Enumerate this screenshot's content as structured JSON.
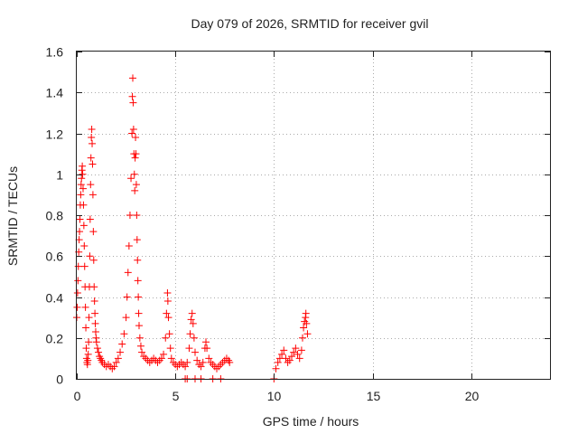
{
  "chart_data": {
    "type": "scatter",
    "title": "Day 079 of 2026, SRMTID for receiver gvil",
    "xlabel": "GPS time / hours",
    "ylabel": "SRMTID / TECUs",
    "xlim": [
      0,
      24
    ],
    "ylim": [
      0,
      1.6
    ],
    "x_ticks": [
      0,
      5,
      10,
      15,
      20
    ],
    "x_tick_labels": [
      "0",
      "5",
      "10",
      "15",
      "20"
    ],
    "y_ticks": [
      0,
      0.2,
      0.4,
      0.6,
      0.8,
      1.0,
      1.2,
      1.4,
      1.6
    ],
    "y_tick_labels": [
      "0",
      "0.2",
      "0.4",
      "0.6",
      "0.8",
      "1",
      "1.2",
      "1.4",
      "1.6"
    ],
    "grid": true,
    "marker": "plus",
    "color": "#ff0000",
    "series": [
      {
        "name": "gvil",
        "points": [
          [
            0.0,
            0.3
          ],
          [
            0.02,
            0.35
          ],
          [
            0.04,
            0.42
          ],
          [
            0.06,
            0.48
          ],
          [
            0.08,
            0.55
          ],
          [
            0.1,
            0.62
          ],
          [
            0.12,
            0.68
          ],
          [
            0.14,
            0.72
          ],
          [
            0.16,
            0.78
          ],
          [
            0.18,
            0.85
          ],
          [
            0.2,
            0.9
          ],
          [
            0.22,
            0.95
          ],
          [
            0.24,
            0.98
          ],
          [
            0.26,
            1.02
          ],
          [
            0.28,
            1.04
          ],
          [
            0.3,
            1.0
          ],
          [
            0.32,
            0.93
          ],
          [
            0.34,
            0.85
          ],
          [
            0.36,
            0.75
          ],
          [
            0.38,
            0.65
          ],
          [
            0.4,
            0.55
          ],
          [
            0.42,
            0.45
          ],
          [
            0.44,
            0.35
          ],
          [
            0.46,
            0.25
          ],
          [
            0.48,
            0.15
          ],
          [
            0.5,
            0.1
          ],
          [
            0.52,
            0.08
          ],
          [
            0.54,
            0.07
          ],
          [
            0.56,
            0.09
          ],
          [
            0.58,
            0.12
          ],
          [
            0.6,
            0.18
          ],
          [
            0.62,
            0.3
          ],
          [
            0.64,
            0.45
          ],
          [
            0.66,
            0.6
          ],
          [
            0.68,
            0.78
          ],
          [
            0.7,
            0.95
          ],
          [
            0.72,
            1.08
          ],
          [
            0.74,
            1.18
          ],
          [
            0.76,
            1.22
          ],
          [
            0.78,
            1.15
          ],
          [
            0.8,
            1.05
          ],
          [
            0.82,
            0.9
          ],
          [
            0.84,
            0.72
          ],
          [
            0.86,
            0.58
          ],
          [
            0.88,
            0.45
          ],
          [
            0.9,
            0.38
          ],
          [
            0.92,
            0.32
          ],
          [
            0.94,
            0.27
          ],
          [
            0.96,
            0.23
          ],
          [
            0.98,
            0.2
          ],
          [
            1.0,
            0.18
          ],
          [
            1.05,
            0.15
          ],
          [
            1.1,
            0.13
          ],
          [
            1.15,
            0.11
          ],
          [
            1.2,
            0.1
          ],
          [
            1.25,
            0.09
          ],
          [
            1.3,
            0.08
          ],
          [
            1.4,
            0.07
          ],
          [
            1.5,
            0.06
          ],
          [
            1.6,
            0.07
          ],
          [
            1.7,
            0.06
          ],
          [
            1.8,
            0.05
          ],
          [
            1.9,
            0.06
          ],
          [
            2.0,
            0.08
          ],
          [
            2.1,
            0.1
          ],
          [
            2.2,
            0.13
          ],
          [
            2.3,
            0.17
          ],
          [
            2.4,
            0.22
          ],
          [
            2.5,
            0.3
          ],
          [
            2.55,
            0.4
          ],
          [
            2.6,
            0.52
          ],
          [
            2.65,
            0.65
          ],
          [
            2.7,
            0.8
          ],
          [
            2.75,
            0.98
          ],
          [
            2.8,
            1.2
          ],
          [
            2.82,
            1.38
          ],
          [
            2.84,
            1.47
          ],
          [
            2.86,
            1.35
          ],
          [
            2.88,
            1.22
          ],
          [
            2.9,
            1.1
          ],
          [
            2.92,
            1.0
          ],
          [
            2.94,
            0.92
          ],
          [
            2.96,
            1.08
          ],
          [
            2.98,
            1.18
          ],
          [
            3.0,
            1.1
          ],
          [
            3.02,
            0.95
          ],
          [
            3.04,
            0.8
          ],
          [
            3.06,
            0.68
          ],
          [
            3.08,
            0.58
          ],
          [
            3.1,
            0.48
          ],
          [
            3.12,
            0.4
          ],
          [
            3.14,
            0.32
          ],
          [
            3.16,
            0.26
          ],
          [
            3.2,
            0.2
          ],
          [
            3.25,
            0.16
          ],
          [
            3.3,
            0.13
          ],
          [
            3.4,
            0.11
          ],
          [
            3.5,
            0.1
          ],
          [
            3.6,
            0.09
          ],
          [
            3.7,
            0.08
          ],
          [
            3.8,
            0.09
          ],
          [
            3.9,
            0.1
          ],
          [
            4.0,
            0.09
          ],
          [
            4.1,
            0.08
          ],
          [
            4.2,
            0.09
          ],
          [
            4.3,
            0.1
          ],
          [
            4.4,
            0.12
          ],
          [
            4.5,
            0.2
          ],
          [
            4.55,
            0.32
          ],
          [
            4.6,
            0.42
          ],
          [
            4.62,
            0.38
          ],
          [
            4.65,
            0.3
          ],
          [
            4.7,
            0.22
          ],
          [
            4.75,
            0.15
          ],
          [
            4.8,
            0.1
          ],
          [
            4.9,
            0.08
          ],
          [
            5.0,
            0.07
          ],
          [
            5.1,
            0.06
          ],
          [
            5.2,
            0.07
          ],
          [
            5.3,
            0.08
          ],
          [
            5.4,
            0.07
          ],
          [
            5.5,
            0.06
          ],
          [
            5.6,
            0.08
          ],
          [
            5.7,
            0.15
          ],
          [
            5.75,
            0.22
          ],
          [
            5.8,
            0.29
          ],
          [
            5.85,
            0.32
          ],
          [
            5.9,
            0.27
          ],
          [
            5.95,
            0.2
          ],
          [
            6.0,
            0.13
          ],
          [
            6.1,
            0.09
          ],
          [
            6.2,
            0.07
          ],
          [
            6.3,
            0.06
          ],
          [
            6.4,
            0.08
          ],
          [
            6.5,
            0.15
          ],
          [
            6.55,
            0.18
          ],
          [
            6.6,
            0.15
          ],
          [
            6.7,
            0.1
          ],
          [
            6.8,
            0.08
          ],
          [
            6.9,
            0.07
          ],
          [
            7.0,
            0.06
          ],
          [
            7.1,
            0.05
          ],
          [
            7.2,
            0.06
          ],
          [
            7.3,
            0.07
          ],
          [
            7.4,
            0.08
          ],
          [
            7.5,
            0.09
          ],
          [
            7.6,
            0.1
          ],
          [
            7.7,
            0.09
          ],
          [
            7.75,
            0.08
          ],
          [
            5.5,
            0.0
          ],
          [
            5.6,
            0.0
          ],
          [
            6.0,
            0.0
          ],
          [
            6.3,
            0.0
          ],
          [
            6.9,
            0.0
          ],
          [
            7.3,
            0.0
          ],
          [
            10.0,
            0.0
          ],
          [
            10.1,
            0.05
          ],
          [
            10.2,
            0.08
          ],
          [
            10.3,
            0.1
          ],
          [
            10.4,
            0.12
          ],
          [
            10.5,
            0.14
          ],
          [
            10.6,
            0.1
          ],
          [
            10.7,
            0.08
          ],
          [
            10.8,
            0.09
          ],
          [
            10.9,
            0.11
          ],
          [
            11.0,
            0.13
          ],
          [
            11.1,
            0.15
          ],
          [
            11.2,
            0.12
          ],
          [
            11.3,
            0.1
          ],
          [
            11.4,
            0.14
          ],
          [
            11.45,
            0.2
          ],
          [
            11.5,
            0.25
          ],
          [
            11.55,
            0.28
          ],
          [
            11.6,
            0.3
          ],
          [
            11.62,
            0.32
          ],
          [
            11.65,
            0.27
          ],
          [
            11.7,
            0.22
          ]
        ]
      }
    ]
  }
}
